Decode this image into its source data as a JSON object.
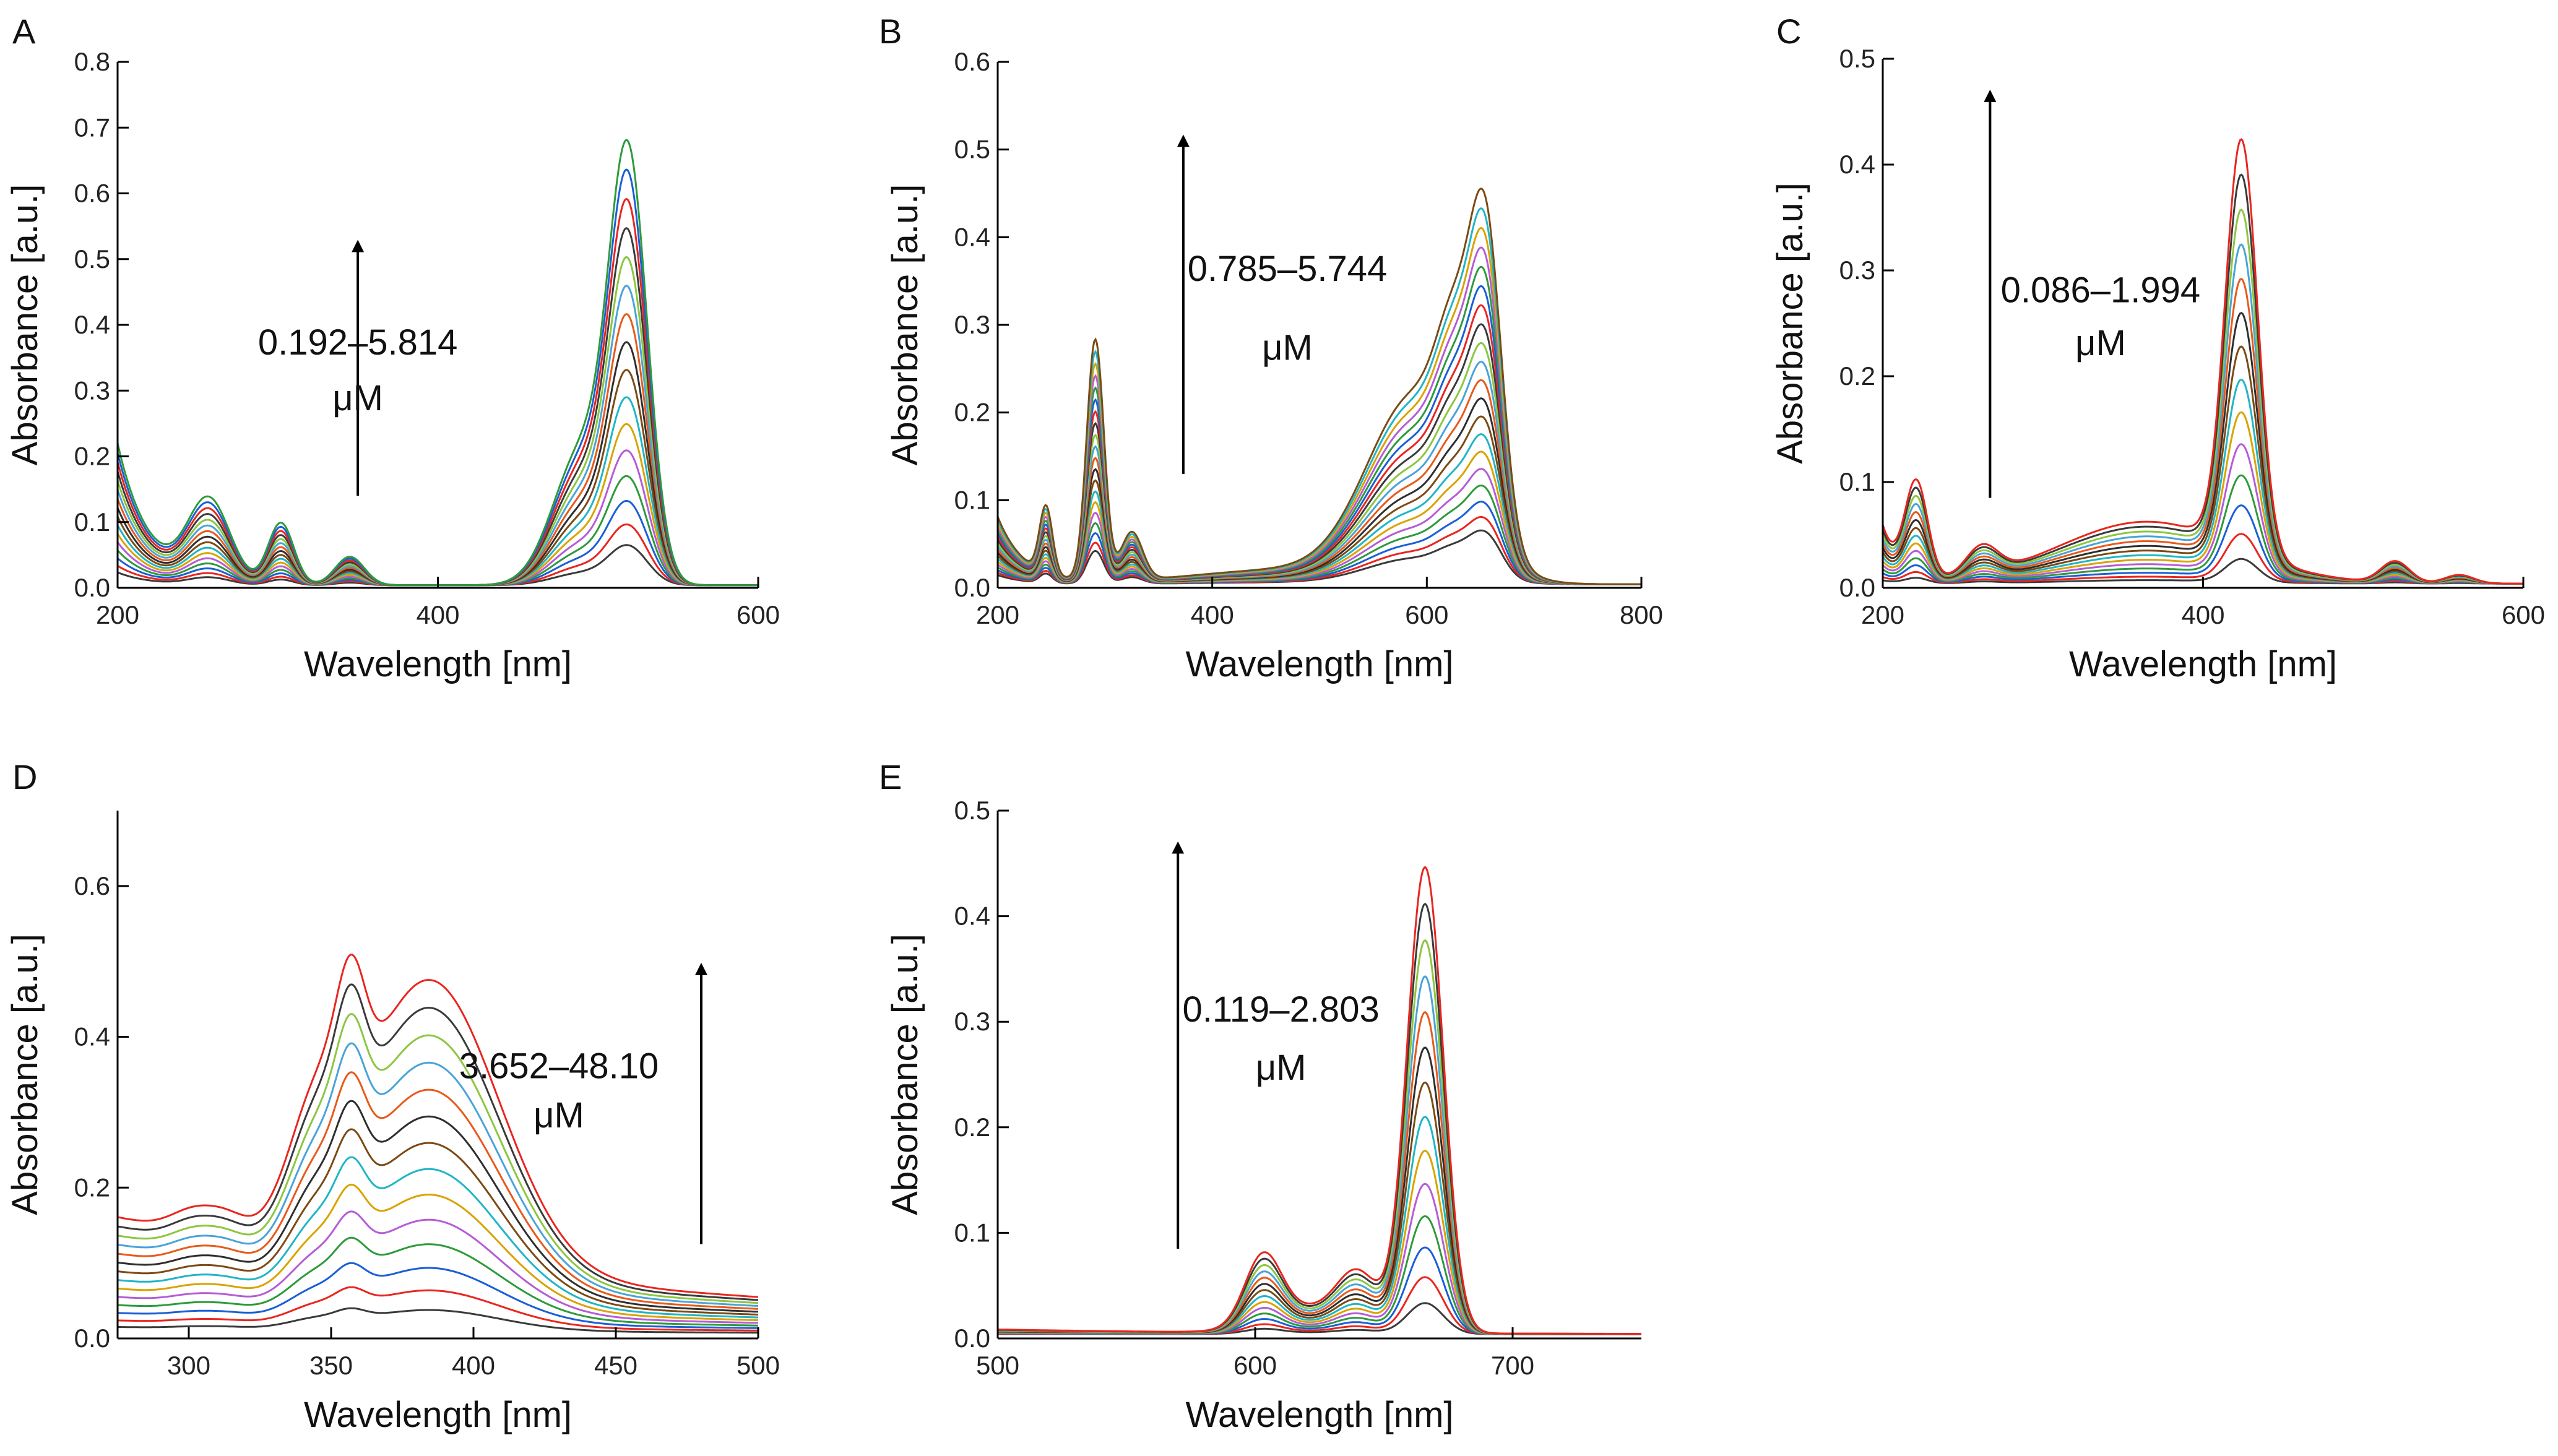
{
  "figure": {
    "units": "μM",
    "colors": [
      "#3a3a3a",
      "#e8261f",
      "#1a5fd6",
      "#2e9a3a",
      "#b55cd6",
      "#d9a300",
      "#20b5c6",
      "#7b4a14",
      "#2e2e2e",
      "#e85a1a",
      "#4aa3d8",
      "#8cc640"
    ]
  },
  "chart_data": [
    {
      "panel": "A",
      "type": "line",
      "xlabel": "Wavelength [nm]",
      "ylabel": "Absorbance [a.u.]",
      "xlim": [
        200,
        600
      ],
      "ylim": [
        0,
        0.8
      ],
      "xticks": [
        200,
        400,
        600
      ],
      "yticks": [
        0.0,
        0.1,
        0.2,
        0.3,
        0.4,
        0.5,
        0.6,
        0.7,
        0.8
      ],
      "ytick_labels": [
        "0.0",
        "0.1",
        "0.2",
        "0.3",
        "0.4",
        "0.5",
        "0.6",
        "0.7",
        "0.8"
      ],
      "annotation": "0.192–5.814",
      "annotation_unit": "μM",
      "arrow": {
        "x": 350,
        "y0": 0.14,
        "y1": 0.52
      },
      "label_pos": {
        "x": 350,
        "y1": 0.355,
        "y2": 0.27
      },
      "n_series": 16,
      "max_scale": 0.72,
      "min_scale": 0.065,
      "baseline": {
        "start": 0.3,
        "decay": 20
      },
      "peaks": [
        {
          "center": 257,
          "width": 13,
          "height": 0.17
        },
        {
          "center": 302,
          "width": 8,
          "height": 0.13
        },
        {
          "center": 345,
          "width": 9,
          "height": 0.06
        },
        {
          "center": 490,
          "width": 18,
          "height": 0.28
        },
        {
          "center": 519,
          "width": 12,
          "height": 0.86
        }
      ]
    },
    {
      "panel": "B",
      "type": "line",
      "xlabel": "Wavelength [nm]",
      "ylabel": "Absorbance [a.u.]",
      "xlim": [
        200,
        800
      ],
      "ylim": [
        0,
        0.6
      ],
      "xticks": [
        200,
        400,
        600,
        800
      ],
      "yticks": [
        0.0,
        0.1,
        0.2,
        0.3,
        0.4,
        0.5,
        0.6
      ],
      "ytick_labels": [
        "0.0",
        "0.1",
        "0.2",
        "0.3",
        "0.4",
        "0.5",
        "0.6"
      ],
      "annotation": "0.785–5.744",
      "annotation_unit": "μM",
      "arrow": {
        "x": 373,
        "y0": 0.13,
        "y1": 0.51
      },
      "label_pos": {
        "x": 470,
        "y1": 0.35,
        "y2": 0.26
      },
      "n_series": 20,
      "max_scale": 0.55,
      "min_scale": 0.075,
      "baseline": {
        "start": 0.14,
        "decay": 25
      },
      "peaks": [
        {
          "center": 245,
          "width": 6,
          "height": 0.14
        },
        {
          "center": 291,
          "width": 8,
          "height": 0.5
        },
        {
          "center": 325,
          "width": 10,
          "height": 0.1
        },
        {
          "center": 470,
          "width": 90,
          "height": 0.03
        },
        {
          "center": 590,
          "width": 45,
          "height": 0.38
        },
        {
          "center": 625,
          "width": 16,
          "height": 0.25
        },
        {
          "center": 655,
          "width": 15,
          "height": 0.62
        }
      ]
    },
    {
      "panel": "C",
      "type": "line",
      "xlabel": "Wavelength [nm]",
      "ylabel": "Absorbance [a.u.]",
      "xlim": [
        200,
        600
      ],
      "ylim": [
        0,
        0.5
      ],
      "xticks": [
        200,
        400,
        600
      ],
      "yticks": [
        0.0,
        0.1,
        0.2,
        0.3,
        0.4,
        0.5
      ],
      "ytick_labels": [
        "0.0",
        "0.1",
        "0.2",
        "0.3",
        "0.4",
        "0.5"
      ],
      "annotation": "0.086–1.994",
      "annotation_unit": "μM",
      "arrow": {
        "x": 267,
        "y0": 0.085,
        "y1": 0.465
      },
      "label_pos": {
        "x": 336,
        "y1": 0.27,
        "y2": 0.22
      },
      "n_series": 14,
      "max_scale": 0.45,
      "min_scale": 0.025,
      "baseline": {
        "start": 0.12,
        "decay": 10
      },
      "peaks": [
        {
          "center": 221,
          "width": 7,
          "height": 0.2
        },
        {
          "center": 262,
          "width": 10,
          "height": 0.06
        },
        {
          "center": 365,
          "width": 55,
          "height": 0.13
        },
        {
          "center": 424,
          "width": 10,
          "height": 0.86
        },
        {
          "center": 520,
          "width": 9,
          "height": 0.045
        },
        {
          "center": 560,
          "width": 9,
          "height": 0.018
        }
      ]
    },
    {
      "panel": "D",
      "type": "line",
      "xlabel": "Wavelength [nm]",
      "ylabel": "Absorbance [a.u.]",
      "xlim": [
        275,
        500
      ],
      "ylim": [
        0,
        0.7
      ],
      "xticks": [
        300,
        350,
        400,
        450,
        500
      ],
      "yticks": [
        0.0,
        0.2,
        0.4,
        0.6
      ],
      "ytick_labels": [
        "0.0",
        "0.2",
        "0.4",
        "0.6"
      ],
      "annotation": "3.652–48.10",
      "annotation_unit": "μM",
      "arrow": {
        "x": 480,
        "y0": 0.125,
        "y1": 0.49
      },
      "label_pos": {
        "x": 430,
        "y1": 0.345,
        "y2": 0.28
      },
      "n_series": 14,
      "max_scale": 0.56,
      "min_scale": 0.04,
      "baseline": {
        "start": 0.28,
        "decay": 200
      },
      "peaks": [
        {
          "center": 302,
          "width": 8,
          "height": 0.05
        },
        {
          "center": 314,
          "width": 7,
          "height": 0.04
        },
        {
          "center": 345,
          "width": 10,
          "height": 0.25
        },
        {
          "center": 357,
          "width": 5,
          "height": 0.25
        },
        {
          "center": 385,
          "width": 24,
          "height": 0.68
        }
      ]
    },
    {
      "panel": "E",
      "type": "line",
      "xlabel": "Wavelength [nm]",
      "ylabel": "Absorbance [a.u.]",
      "xlim": [
        500,
        750
      ],
      "ylim": [
        0,
        0.5
      ],
      "xticks": [
        500,
        600,
        700
      ],
      "yticks": [
        0.0,
        0.1,
        0.2,
        0.3,
        0.4,
        0.5
      ],
      "ytick_labels": [
        "0.0",
        "0.1",
        "0.2",
        "0.3",
        "0.4",
        "0.5"
      ],
      "annotation": "0.119–2.803",
      "annotation_unit": "μM",
      "arrow": {
        "x": 570,
        "y0": 0.085,
        "y1": 0.465
      },
      "label_pos": {
        "x": 610,
        "y1": 0.3,
        "y2": 0.245
      },
      "n_series": 14,
      "max_scale": 0.45,
      "min_scale": 0.03,
      "baseline": {
        "start": 0.01,
        "decay": 100
      },
      "peaks": [
        {
          "center": 603,
          "width": 7,
          "height": 0.14
        },
        {
          "center": 620,
          "width": 16,
          "height": 0.05
        },
        {
          "center": 640,
          "width": 8,
          "height": 0.11
        },
        {
          "center": 666,
          "width": 7,
          "height": 0.98
        }
      ]
    }
  ]
}
